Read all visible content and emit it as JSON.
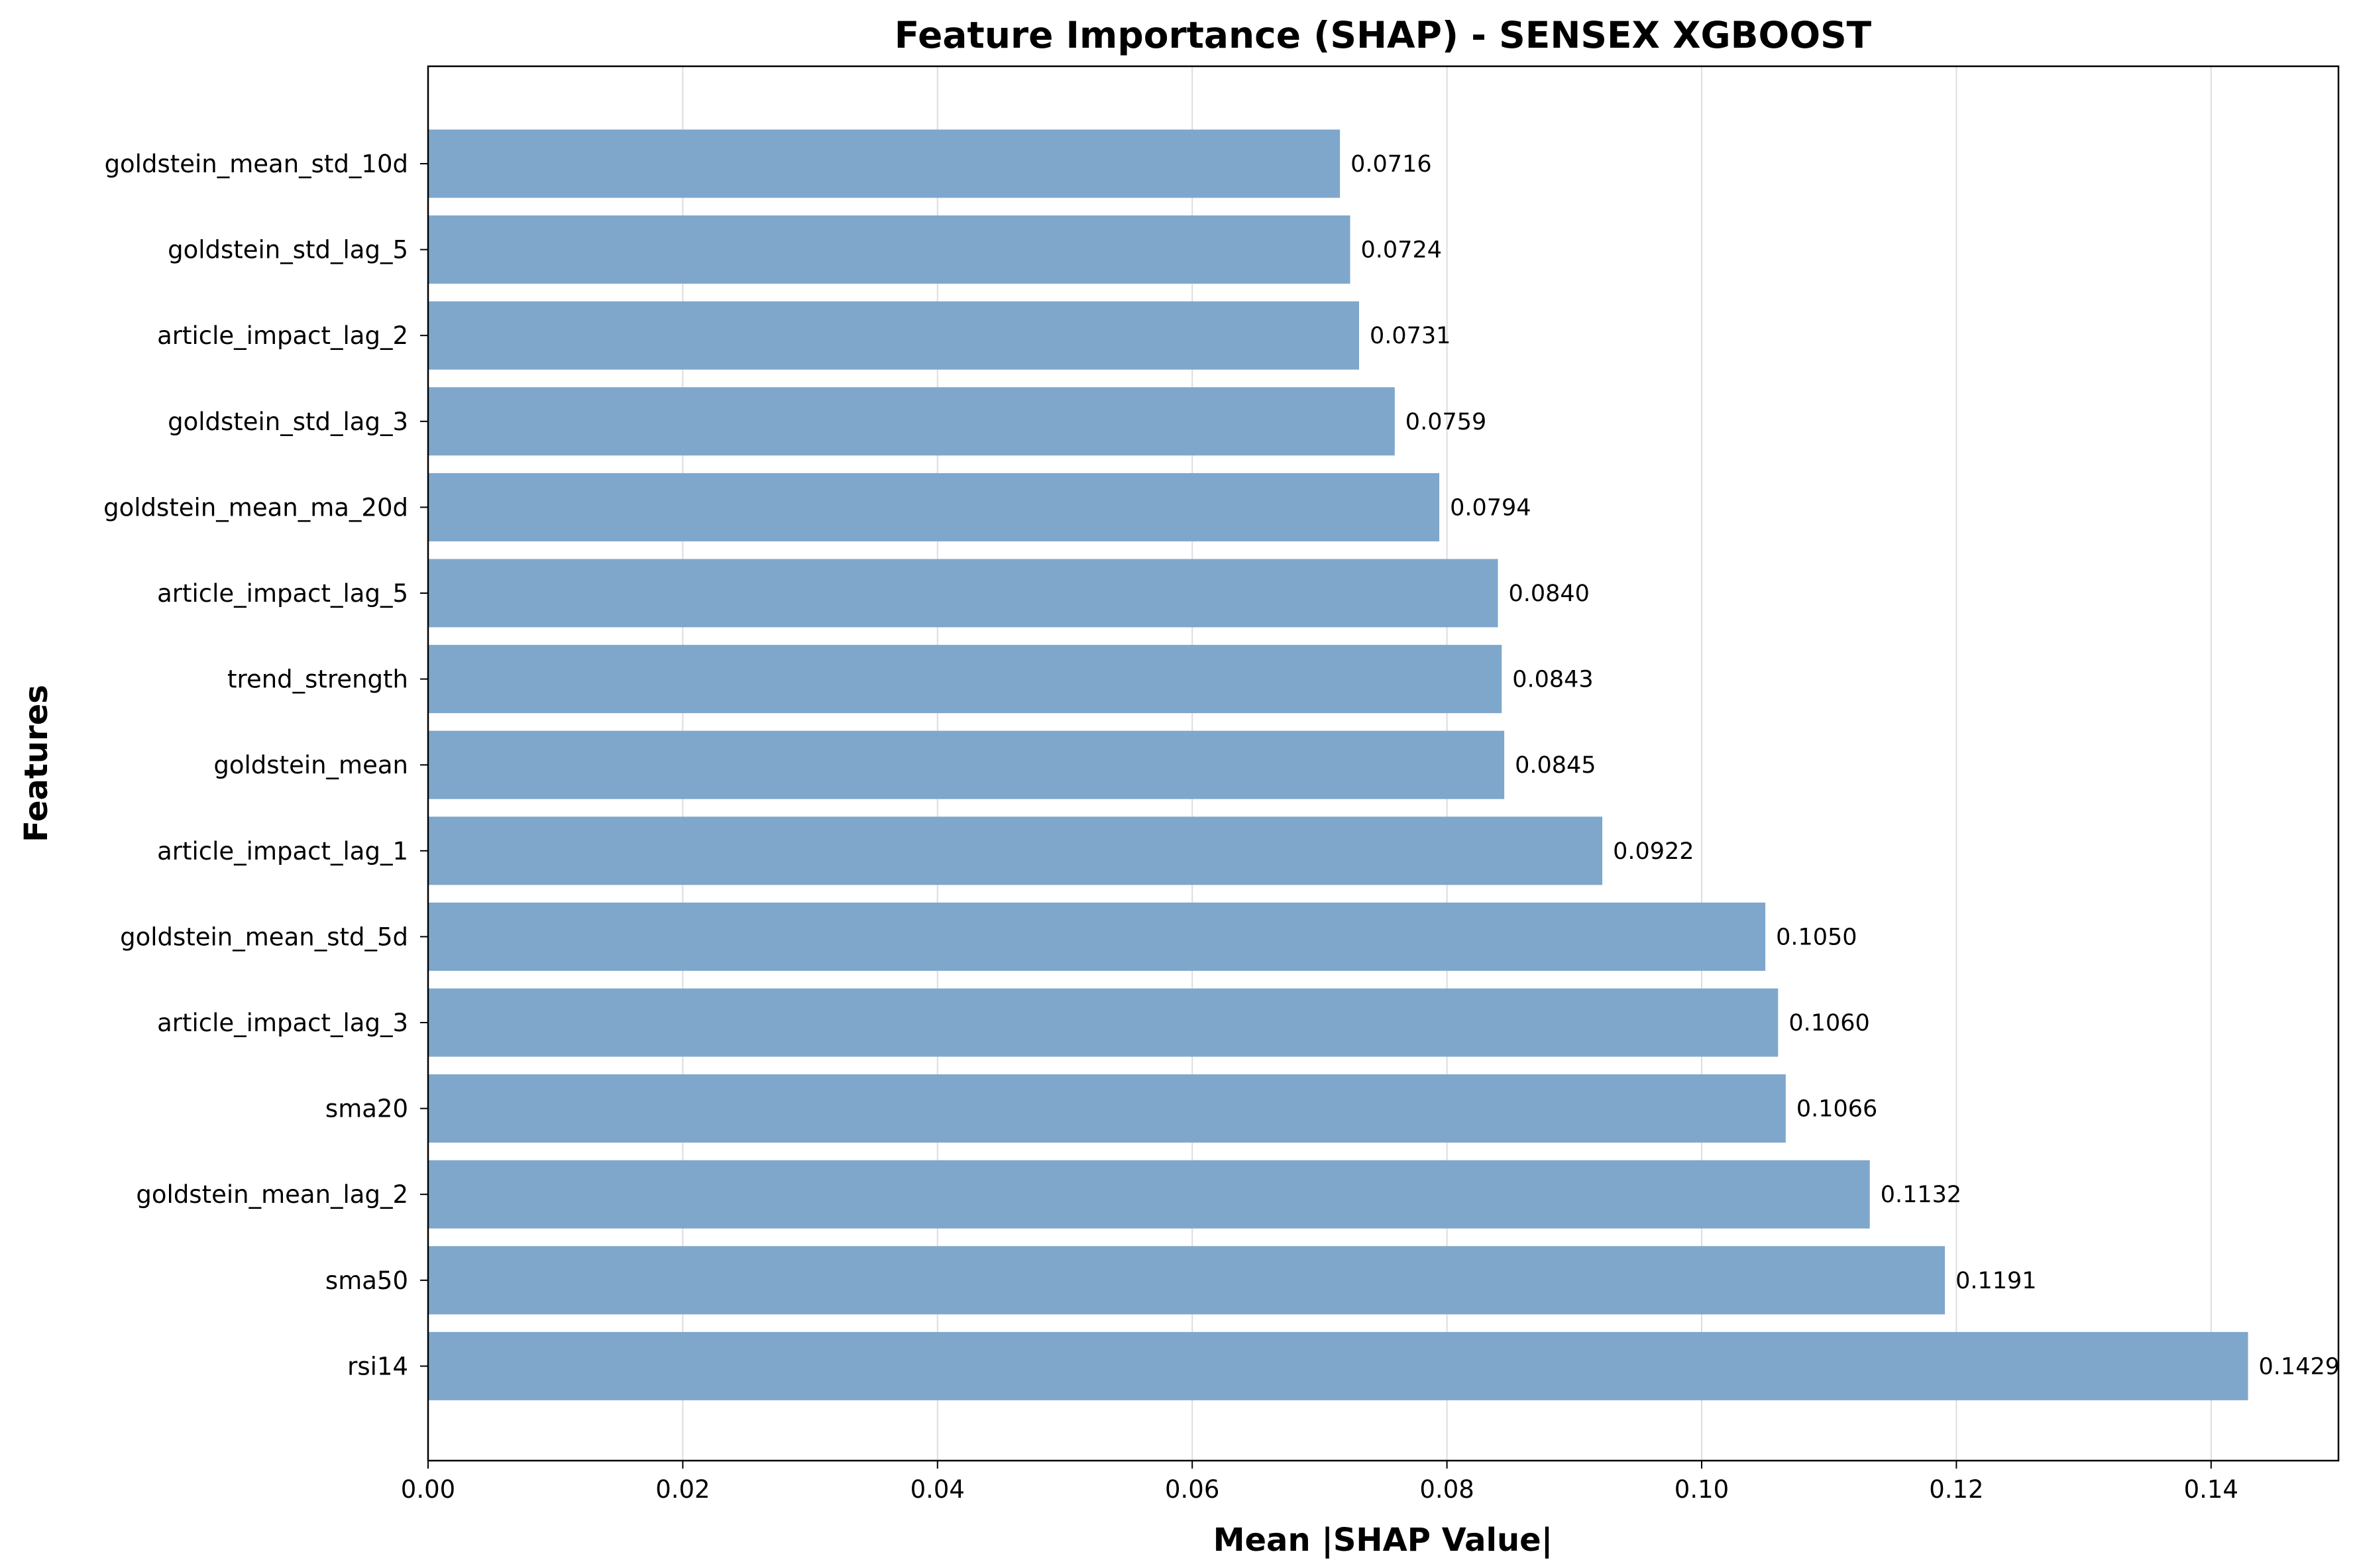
{
  "chart_data": {
    "type": "bar",
    "orientation": "horizontal",
    "title": "Feature Importance (SHAP) - SENSEX XGBOOST",
    "xlabel": "Mean |SHAP Value|",
    "ylabel": "Features",
    "xlim": [
      0.0,
      0.15
    ],
    "xticks": [
      "0.00",
      "0.02",
      "0.04",
      "0.06",
      "0.08",
      "0.10",
      "0.12",
      "0.14"
    ],
    "categories": [
      "goldstein_mean_std_10d",
      "goldstein_std_lag_5",
      "article_impact_lag_2",
      "goldstein_std_lag_3",
      "goldstein_mean_ma_20d",
      "article_impact_lag_5",
      "trend_strength",
      "goldstein_mean",
      "article_impact_lag_1",
      "goldstein_mean_std_5d",
      "article_impact_lag_3",
      "sma20",
      "goldstein_mean_lag_2",
      "sma50",
      "rsi14"
    ],
    "values": [
      0.0716,
      0.0724,
      0.0731,
      0.0759,
      0.0794,
      0.084,
      0.0843,
      0.0845,
      0.0922,
      0.105,
      0.106,
      0.1066,
      0.1132,
      0.1191,
      0.1429
    ],
    "value_labels": [
      "0.0716",
      "0.0724",
      "0.0731",
      "0.0759",
      "0.0794",
      "0.0840",
      "0.0843",
      "0.0845",
      "0.0922",
      "0.1050",
      "0.1060",
      "0.1066",
      "0.1132",
      "0.1191",
      "0.1429"
    ],
    "bar_color": "#7ea7cb",
    "grid": "x",
    "legend": "none"
  }
}
